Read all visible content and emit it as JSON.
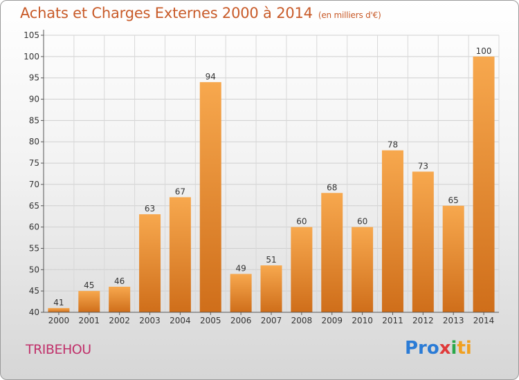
{
  "header": {
    "title": "Achats et Charges Externes 2000 à 2014",
    "subtitle": "(en milliers d'€)"
  },
  "footer": {
    "commune": "TRIBEHOU",
    "logo": [
      "Pro",
      "x",
      "i",
      "ti"
    ]
  },
  "colors": {
    "bar_light": "#f6a54a",
    "bar_dark": "#d0701c",
    "title": "#c85a28",
    "commune": "#c0306a"
  },
  "chart_data": {
    "type": "bar",
    "categories": [
      "2000",
      "2001",
      "2002",
      "2003",
      "2004",
      "2005",
      "2006",
      "2007",
      "2008",
      "2009",
      "2010",
      "2011",
      "2012",
      "2013",
      "2014"
    ],
    "values": [
      41,
      45,
      46,
      63,
      67,
      94,
      49,
      51,
      60,
      68,
      60,
      78,
      73,
      65,
      100
    ],
    "ylim": [
      40,
      105
    ],
    "yticks": [
      40,
      45,
      50,
      55,
      60,
      65,
      70,
      75,
      80,
      85,
      90,
      95,
      100,
      105
    ],
    "grid": true
  }
}
